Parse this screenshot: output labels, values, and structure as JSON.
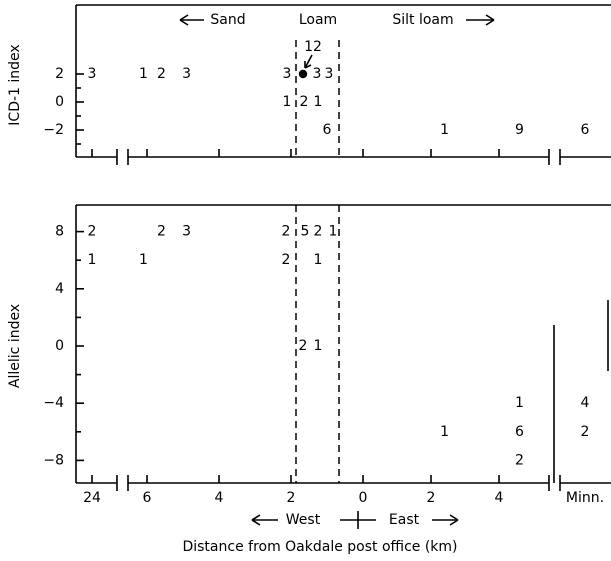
{
  "chart_data": [
    {
      "type": "scatter",
      "ylabel": "ICD-1 index",
      "yticks": [
        2,
        0,
        -2
      ],
      "ylim": [
        -3.5,
        5.1
      ],
      "points": [
        {
          "x": "24",
          "y": 2,
          "label": "3"
        },
        {
          "x": 6.1,
          "y": 2,
          "label": "1"
        },
        {
          "x": 5.6,
          "y": 2,
          "label": "2"
        },
        {
          "x": 4.9,
          "y": 2,
          "label": "3"
        },
        {
          "x": 1.9,
          "y": 2,
          "label": "3"
        },
        {
          "x": 1.1,
          "y": 2,
          "label": "3"
        },
        {
          "x": 0.7,
          "y": 2,
          "label": "3"
        },
        {
          "x": 1.9,
          "y": 0,
          "label": "1"
        },
        {
          "x": 1.5,
          "y": 0,
          "label": "2"
        },
        {
          "x": 1.1,
          "y": 0,
          "label": "1"
        },
        {
          "x": 0.8,
          "y": -2,
          "label": "6"
        },
        {
          "x": 2.4,
          "y": -2,
          "label": "1"
        },
        {
          "x": 4.6,
          "y": -2,
          "label": "9"
        },
        {
          "x": "Minn.",
          "y": -2,
          "label": "6"
        }
      ],
      "special_point": {
        "x": 1.5,
        "y": 2,
        "label": "12",
        "marker": "filled-circle"
      },
      "annotations": {
        "sand": "← Sand",
        "loam": "Loam",
        "silt_loam": "Silt loam →"
      }
    },
    {
      "type": "scatter",
      "ylabel": "Allelic index",
      "yticks": [
        8,
        4,
        0,
        -4,
        -8
      ],
      "ylim": [
        -9.8,
        10
      ],
      "points": [
        {
          "x": "24",
          "y": 8,
          "label": "2"
        },
        {
          "x": "24",
          "y": 6,
          "label": "1"
        },
        {
          "x": 6.1,
          "y": 6,
          "label": "1"
        },
        {
          "x": 5.6,
          "y": 8,
          "label": "2"
        },
        {
          "x": 4.9,
          "y": 8,
          "label": "3"
        },
        {
          "x": 1.9,
          "y": 8,
          "label": "2"
        },
        {
          "x": 1.9,
          "y": 6,
          "label": "2"
        },
        {
          "x": 1.5,
          "y": 8,
          "label": "5"
        },
        {
          "x": 1.1,
          "y": 8,
          "label": "2"
        },
        {
          "x": 0.7,
          "y": 8,
          "label": "1"
        },
        {
          "x": 1.1,
          "y": 6,
          "label": "1"
        },
        {
          "x": 1.5,
          "y": 0,
          "label": "2"
        },
        {
          "x": 1.1,
          "y": 0,
          "label": "1"
        },
        {
          "x": 2.4,
          "y": -6,
          "label": "1"
        },
        {
          "x": 4.6,
          "y": -4,
          "label": "1"
        },
        {
          "x": 4.6,
          "y": -6,
          "label": "6"
        },
        {
          "x": 4.6,
          "y": -8,
          "label": "2"
        },
        {
          "x": "Minn.",
          "y": -4,
          "label": "4"
        },
        {
          "x": "Minn.",
          "y": -6,
          "label": "2"
        }
      ]
    }
  ],
  "x_axis": {
    "ticks_west": [
      6,
      4,
      2
    ],
    "ticks_east": [
      0,
      2,
      4
    ],
    "far_label": "24",
    "minn_label": "Minn.",
    "west_label": "West",
    "east_label": "East",
    "title": "Distance from Oakdale post office (km)"
  },
  "zone_boundaries": [
    1.7,
    0.6
  ]
}
